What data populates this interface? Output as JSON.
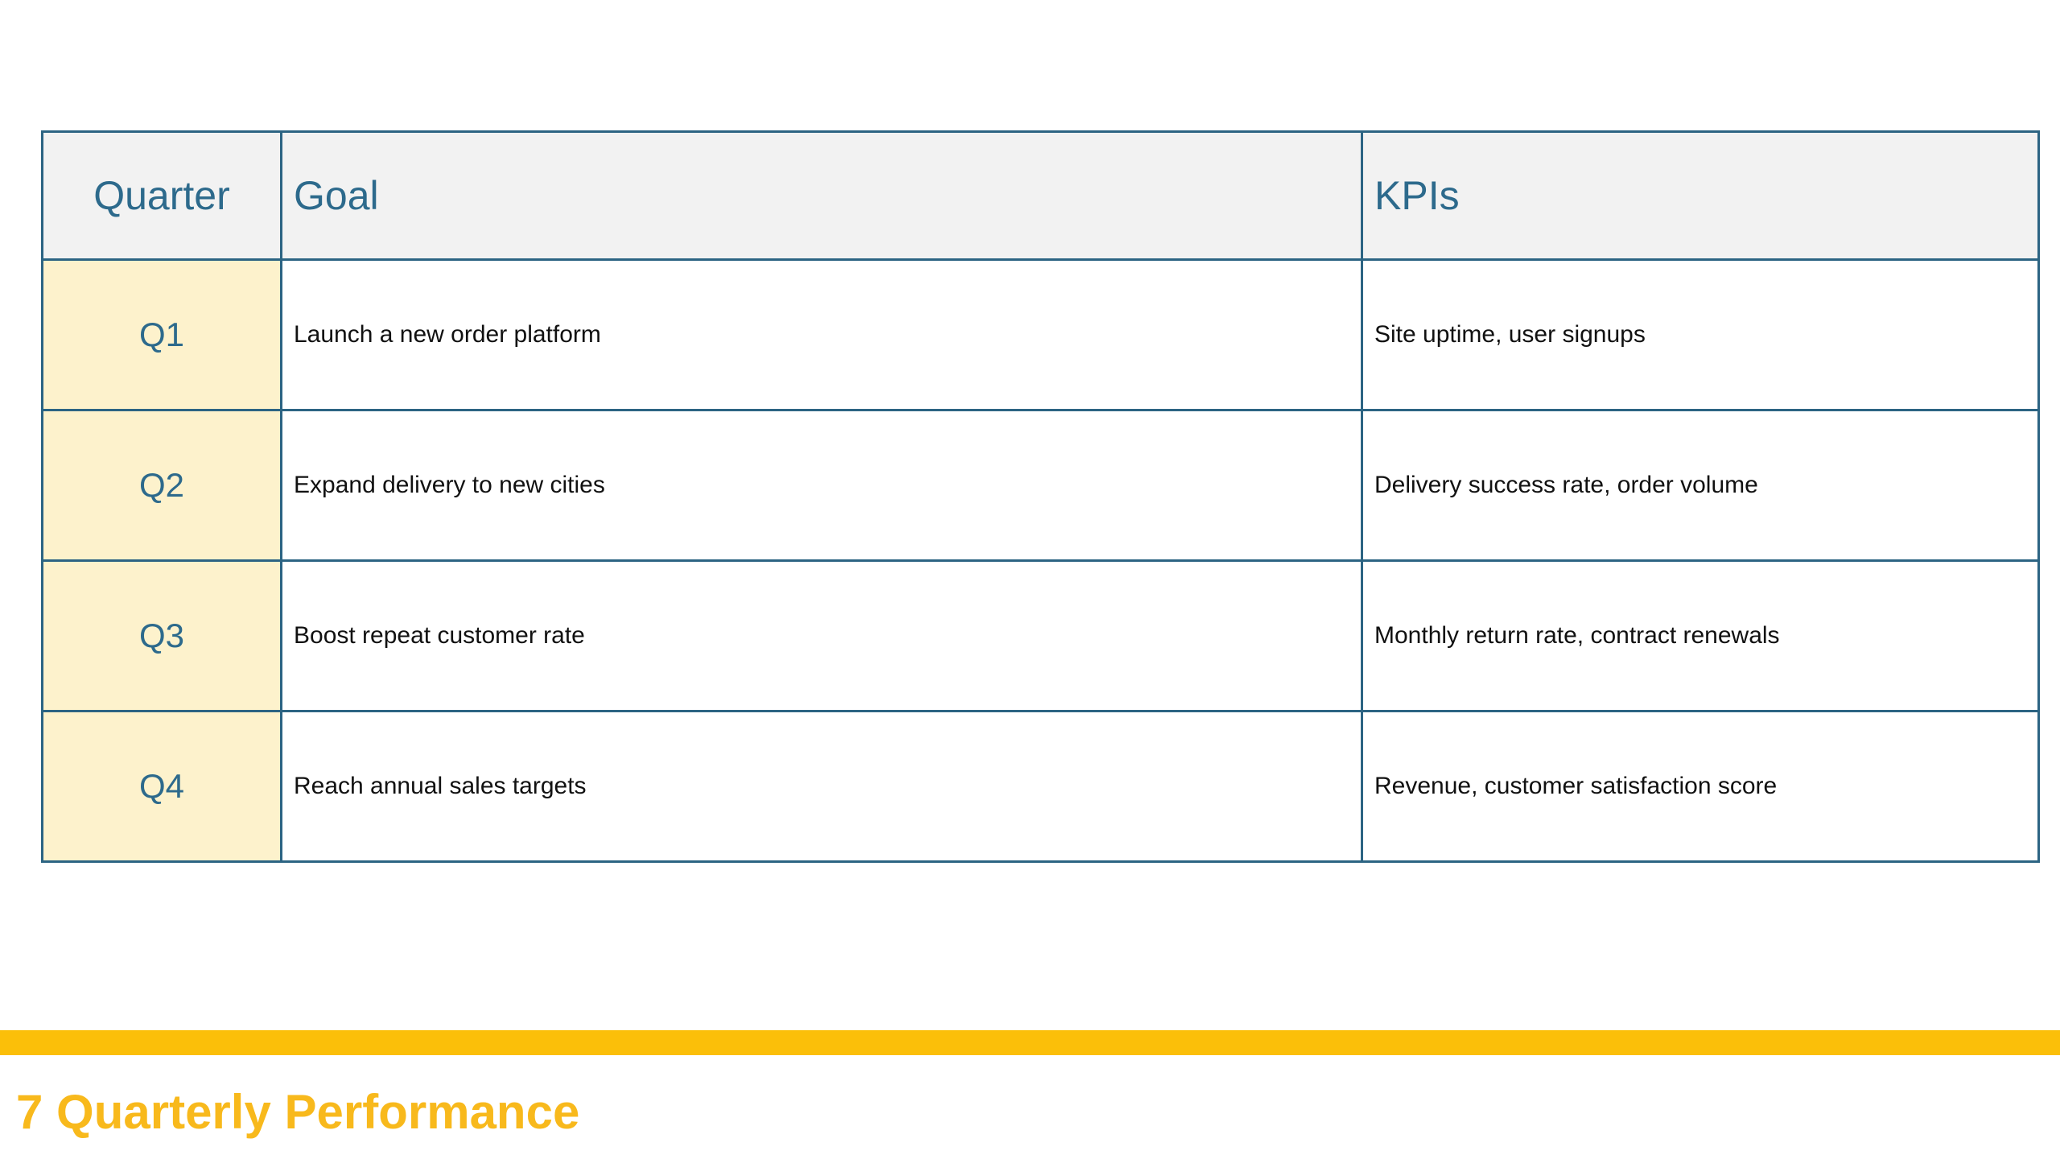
{
  "table": {
    "headers": {
      "quarter": "Quarter",
      "goal": "Goal",
      "kpis": "KPIs"
    },
    "rows": [
      {
        "quarter": "Q1",
        "goal": "Launch a new order platform",
        "kpis": "Site uptime, user signups"
      },
      {
        "quarter": "Q2",
        "goal": "Expand delivery to new cities",
        "kpis": "Delivery success rate, order volume"
      },
      {
        "quarter": "Q3",
        "goal": "Boost repeat customer rate",
        "kpis": "Monthly return rate, contract renewals"
      },
      {
        "quarter": "Q4",
        "goal": "Reach annual sales targets",
        "kpis": "Revenue, customer satisfaction score"
      }
    ]
  },
  "footer": {
    "slide_number": "7",
    "title": "Quarterly Performance"
  },
  "colors": {
    "border": "#2c6483",
    "header_text": "#2d6a8c",
    "header_bg": "#f2f2f2",
    "quarter_bg": "#fdf2cc",
    "accent": "#fbbf09",
    "footer_title": "#f8b91c"
  }
}
